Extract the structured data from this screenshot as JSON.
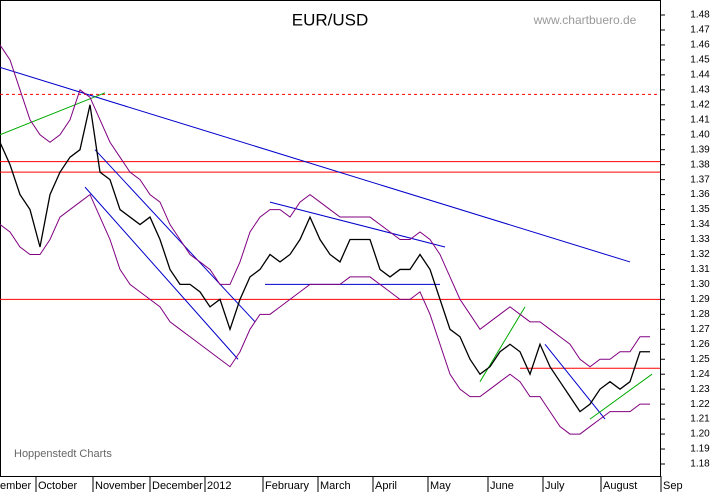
{
  "chart_data": {
    "type": "line",
    "title": "EUR/USD",
    "watermark": "www.chartbuero.de",
    "source": "Hoppenstedt Charts",
    "months": [
      "ember",
      "October",
      "November",
      "December",
      "2012",
      "February",
      "March",
      "April",
      "May",
      "June",
      "July",
      "August",
      "Sep"
    ],
    "xlim": [
      0,
      660
    ],
    "ylim": [
      1.18,
      1.48
    ],
    "yticks": [
      1.18,
      1.19,
      {
        "value": 1.2,
        "label": "1.20"
      },
      1.21,
      1.22,
      1.23,
      1.24,
      1.25,
      1.26,
      1.27,
      1.28,
      1.29,
      {
        "value": 1.3,
        "label": "1.30"
      },
      1.31,
      1.32,
      1.33,
      1.34,
      1.35,
      1.36,
      1.37,
      1.38,
      1.39,
      {
        "value": 1.4,
        "label": "1.40"
      },
      1.41,
      1.42,
      1.43,
      1.44,
      1.45,
      1.46,
      1.47,
      1.48
    ],
    "x": [
      0,
      10,
      20,
      30,
      40,
      50,
      60,
      70,
      80,
      90,
      100,
      110,
      120,
      130,
      140,
      150,
      160,
      170,
      180,
      190,
      200,
      210,
      220,
      230,
      240,
      250,
      260,
      270,
      280,
      290,
      300,
      310,
      320,
      330,
      340,
      350,
      360,
      370,
      380,
      390,
      400,
      410,
      420,
      430,
      440,
      450,
      460,
      470,
      480,
      490,
      500,
      510,
      520,
      530,
      540,
      550,
      560,
      570,
      580,
      590,
      600,
      610,
      620,
      630,
      640,
      650
    ],
    "series": [
      {
        "color": "#000000",
        "values": [
          1.395,
          1.38,
          1.36,
          1.35,
          1.325,
          1.36,
          1.375,
          1.385,
          1.39,
          1.42,
          1.375,
          1.37,
          1.35,
          1.345,
          1.34,
          1.345,
          1.33,
          1.31,
          1.3,
          1.3,
          1.295,
          1.285,
          1.29,
          1.27,
          1.29,
          1.305,
          1.31,
          1.32,
          1.315,
          1.32,
          1.33,
          1.345,
          1.33,
          1.32,
          1.315,
          1.33,
          1.33,
          1.33,
          1.31,
          1.305,
          1.31,
          1.31,
          1.32,
          1.31,
          1.29,
          1.27,
          1.265,
          1.25,
          1.24,
          1.245,
          1.255,
          1.26,
          1.255,
          1.24,
          1.26,
          1.245,
          1.235,
          1.225,
          1.215,
          1.22,
          1.23,
          1.235,
          1.23,
          1.235,
          1.255,
          1.255
        ]
      },
      {
        "color": "#800080",
        "values": [
          1.46,
          1.45,
          1.43,
          1.41,
          1.4,
          1.395,
          1.4,
          1.41,
          1.43,
          1.425,
          1.41,
          1.395,
          1.385,
          1.375,
          1.37,
          1.36,
          1.355,
          1.34,
          1.33,
          1.32,
          1.315,
          1.31,
          1.3,
          1.3,
          1.315,
          1.335,
          1.345,
          1.35,
          1.35,
          1.345,
          1.355,
          1.36,
          1.355,
          1.35,
          1.345,
          1.345,
          1.345,
          1.345,
          1.34,
          1.335,
          1.33,
          1.33,
          1.335,
          1.33,
          1.32,
          1.305,
          1.29,
          1.28,
          1.27,
          1.275,
          1.28,
          1.285,
          1.28,
          1.275,
          1.275,
          1.27,
          1.265,
          1.26,
          1.25,
          1.245,
          1.25,
          1.25,
          1.255,
          1.255,
          1.265,
          1.265
        ]
      },
      {
        "color": "#800080",
        "values": [
          1.34,
          1.335,
          1.325,
          1.32,
          1.32,
          1.33,
          1.345,
          1.35,
          1.355,
          1.36,
          1.345,
          1.33,
          1.31,
          1.3,
          1.295,
          1.29,
          1.285,
          1.275,
          1.27,
          1.265,
          1.26,
          1.255,
          1.25,
          1.245,
          1.255,
          1.27,
          1.28,
          1.28,
          1.285,
          1.29,
          1.295,
          1.3,
          1.3,
          1.3,
          1.3,
          1.305,
          1.305,
          1.305,
          1.3,
          1.295,
          1.29,
          1.29,
          1.295,
          1.28,
          1.26,
          1.24,
          1.23,
          1.225,
          1.225,
          1.23,
          1.235,
          1.24,
          1.235,
          1.225,
          1.225,
          1.215,
          1.205,
          1.2,
          1.2,
          1.205,
          1.21,
          1.215,
          1.215,
          1.215,
          1.22,
          1.22
        ]
      }
    ],
    "lines": [
      {
        "color": "#ff0000",
        "dash": true,
        "x": [
          0,
          660
        ],
        "y": [
          1.427,
          1.427
        ]
      },
      {
        "color": "#ff0000",
        "dash": false,
        "x": [
          0,
          660
        ],
        "y": [
          1.382,
          1.382
        ]
      },
      {
        "color": "#ff0000",
        "dash": false,
        "x": [
          0,
          660
        ],
        "y": [
          1.375,
          1.375
        ]
      },
      {
        "color": "#ff0000",
        "dash": false,
        "x": [
          0,
          660
        ],
        "y": [
          1.29,
          1.29
        ]
      },
      {
        "color": "#ff0000",
        "dash": false,
        "x": [
          520,
          660
        ],
        "y": [
          1.244,
          1.244
        ]
      },
      {
        "color": "#0000cc",
        "dash": false,
        "x": [
          0,
          630
        ],
        "y": [
          1.445,
          1.315
        ]
      },
      {
        "color": "#0000cc",
        "dash": false,
        "x": [
          265,
          440
        ],
        "y": [
          1.3,
          1.3
        ]
      },
      {
        "color": "#0000cc",
        "dash": false,
        "x": [
          270,
          445
        ],
        "y": [
          1.355,
          1.325
        ]
      },
      {
        "color": "#0000cc",
        "dash": false,
        "x": [
          95,
          255
        ],
        "y": [
          1.39,
          1.275
        ]
      },
      {
        "color": "#0000cc",
        "dash": false,
        "x": [
          85,
          238
        ],
        "y": [
          1.365,
          1.25
        ]
      },
      {
        "color": "#0000cc",
        "dash": false,
        "x": [
          545,
          605
        ],
        "y": [
          1.26,
          1.21
        ]
      },
      {
        "color": "#00aa00",
        "dash": false,
        "x": [
          0,
          105
        ],
        "y": [
          1.4,
          1.428
        ]
      },
      {
        "color": "#00aa00",
        "dash": false,
        "x": [
          480,
          525
        ],
        "y": [
          1.235,
          1.285
        ]
      },
      {
        "color": "#00aa00",
        "dash": false,
        "x": [
          590,
          652
        ],
        "y": [
          1.21,
          1.24
        ]
      }
    ]
  }
}
